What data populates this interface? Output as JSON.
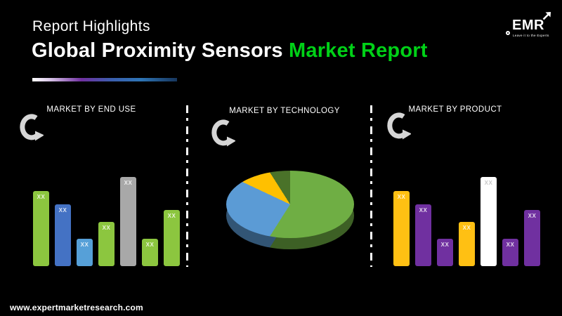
{
  "page": {
    "background_color": "#000000"
  },
  "header": {
    "kicker": "Report Highlights",
    "title_main": "Global Proximity Sensors",
    "title_accent": "Market Report",
    "accent_color": "#00d117",
    "underline_gradient_colors": [
      "#ffffff",
      "#d9c6e8",
      "#7030a0",
      "#3b5fae",
      "#2e75b6",
      "#17365d"
    ]
  },
  "logo": {
    "text": "EMR",
    "tagline": "Leave it to the Experts"
  },
  "footer": {
    "url": "www.expertmarketresearch.com"
  },
  "chart_data": [
    {
      "type": "bar",
      "title": "MARKET BY END USE",
      "ylim": [
        0,
        100
      ],
      "grid": false,
      "note": "bar values shown only as placeholder labels",
      "bars": [
        {
          "label": "XX",
          "value_rel": 84,
          "color": "#8cc63f"
        },
        {
          "label": "XX",
          "value_rel": 69,
          "color": "#4472c4"
        },
        {
          "label": "XX",
          "value_rel": 31,
          "color": "#56a0d8"
        },
        {
          "label": "XX",
          "value_rel": 50,
          "color": "#8cc63f"
        },
        {
          "label": "XX",
          "value_rel": 100,
          "color": "#a8a8a8"
        },
        {
          "label": "XX",
          "value_rel": 31,
          "color": "#8cc63f"
        },
        {
          "label": "XX",
          "value_rel": 63,
          "color": "#8cc63f"
        }
      ]
    },
    {
      "type": "pie",
      "title": "MARKET BY TECHNOLOGY",
      "start_angle_deg": 0,
      "style": "3d",
      "slices": [
        {
          "value_pct": 59,
          "color": "#6fae44"
        },
        {
          "value_pct": 23,
          "color": "#5b9bd5"
        },
        {
          "value_pct": 9,
          "color": "#ffc000"
        },
        {
          "value_pct": 9,
          "color": "#4a7229"
        }
      ]
    },
    {
      "type": "bar",
      "title": "MARKET BY PRODUCT",
      "ylim": [
        0,
        100
      ],
      "grid": false,
      "note": "bar values shown only as placeholder labels",
      "bars": [
        {
          "label": "XX",
          "value_rel": 84,
          "color": "#ffc013"
        },
        {
          "label": "XX",
          "value_rel": 69,
          "color": "#7030a0"
        },
        {
          "label": "XX",
          "value_rel": 31,
          "color": "#7030a0"
        },
        {
          "label": "XX",
          "value_rel": 50,
          "color": "#ffc013"
        },
        {
          "label": "XX",
          "value_rel": 100,
          "color": "#ffffff",
          "label_color": "#c9c9c9"
        },
        {
          "label": "XX",
          "value_rel": 31,
          "color": "#7030a0"
        },
        {
          "label": "XX",
          "value_rel": 63,
          "color": "#7030a0"
        }
      ]
    }
  ]
}
